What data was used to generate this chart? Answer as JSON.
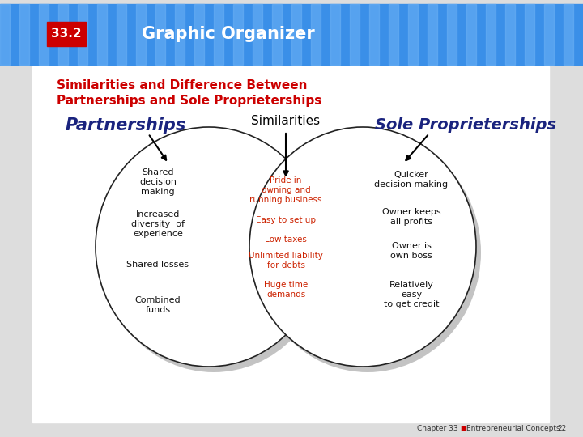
{
  "title_box_text": "33.2",
  "title_box_color": "#cc0000",
  "title_text": "Graphic Organizer",
  "header_bg_color": "#3a8fe8",
  "subtitle_line1": "Similarities and Difference Between",
  "subtitle_line2": "Partnerships and Sole Proprieterships",
  "subtitle_color": "#cc0000",
  "left_label": "Partnerships",
  "right_label": "Sole Proprieterships",
  "label_color": "#1a237e",
  "center_label": "Similarities",
  "center_label_color": "#000000",
  "left_items": [
    "Shared\ndecision\nmaking",
    "Increased\ndiversity  of\nexperience",
    "Shared losses",
    "Combined\nfunds"
  ],
  "center_items": [
    "Pride in\nowning and\nrunning business",
    "Easy to set up",
    "Low taxes",
    "Unlimited liability\nfor debts",
    "Huge time\ndemands"
  ],
  "right_items": [
    "Quicker\ndecision making",
    "Owner keeps\nall profits",
    "Owner is\nown boss",
    "Relatively\neasy\nto get credit"
  ],
  "center_item_color": "#cc2200",
  "left_item_color": "#111111",
  "right_item_color": "#111111",
  "footer_text": "Chapter 33",
  "footer_text2": "Entrepreneurial Concepts",
  "footer_page": "22",
  "bg_color": "#ffffff",
  "outer_bg": "#e8e8e8"
}
